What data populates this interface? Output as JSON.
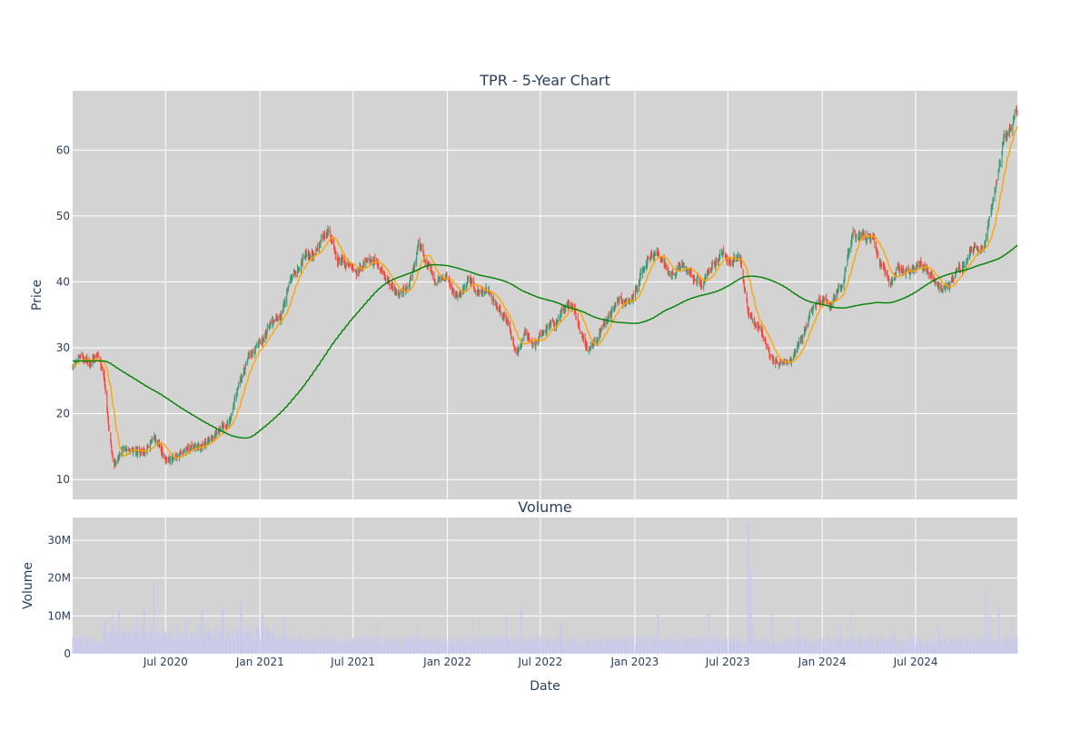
{
  "chart_data": {
    "type": "candlestick",
    "title": "TPR - 5-Year Chart",
    "price_panel": {
      "ylabel": "Price",
      "ylim": [
        7,
        69
      ],
      "yticks": [
        10,
        20,
        30,
        40,
        50,
        60
      ],
      "yticks_labels": [
        "10",
        "20",
        "30",
        "40",
        "50",
        "60"
      ],
      "colors": {
        "up": "#3d9970",
        "down": "#ff4136",
        "ma_short": "#ffa500",
        "ma_long": "#008000"
      },
      "anchors": [
        [
          "2020-01-01",
          27.0
        ],
        [
          "2020-01-20",
          28.5
        ],
        [
          "2020-02-05",
          27.5
        ],
        [
          "2020-02-20",
          29.0
        ],
        [
          "2020-03-03",
          25.5
        ],
        [
          "2020-03-12",
          18.0
        ],
        [
          "2020-03-22",
          12.0
        ],
        [
          "2020-04-05",
          14.5
        ],
        [
          "2020-04-25",
          14.5
        ],
        [
          "2020-05-20",
          14.0
        ],
        [
          "2020-06-10",
          16.5
        ],
        [
          "2020-07-01",
          13.0
        ],
        [
          "2020-07-25",
          13.5
        ],
        [
          "2020-08-15",
          15.0
        ],
        [
          "2020-09-10",
          15.0
        ],
        [
          "2020-10-05",
          17.0
        ],
        [
          "2020-11-01",
          18.5
        ],
        [
          "2020-11-20",
          24.0
        ],
        [
          "2020-12-10",
          28.5
        ],
        [
          "2021-01-05",
          31.0
        ],
        [
          "2021-01-20",
          34.0
        ],
        [
          "2021-02-10",
          34.5
        ],
        [
          "2021-03-01",
          40.0
        ],
        [
          "2021-03-20",
          43.0
        ],
        [
          "2021-04-10",
          43.5
        ],
        [
          "2021-05-01",
          46.0
        ],
        [
          "2021-05-15",
          48.0
        ],
        [
          "2021-06-01",
          44.0
        ],
        [
          "2021-06-20",
          43.0
        ],
        [
          "2021-07-10",
          42.0
        ],
        [
          "2021-08-01",
          43.5
        ],
        [
          "2021-08-20",
          42.5
        ],
        [
          "2021-09-10",
          39.0
        ],
        [
          "2021-10-01",
          38.5
        ],
        [
          "2021-10-20",
          39.5
        ],
        [
          "2021-11-05",
          45.5
        ],
        [
          "2021-11-20",
          43.5
        ],
        [
          "2021-12-10",
          40.5
        ],
        [
          "2022-01-01",
          40.5
        ],
        [
          "2022-01-20",
          37.5
        ],
        [
          "2022-02-10",
          40.0
        ],
        [
          "2022-03-01",
          38.5
        ],
        [
          "2022-03-20",
          39.0
        ],
        [
          "2022-04-10",
          35.5
        ],
        [
          "2022-05-01",
          33.0
        ],
        [
          "2022-05-15",
          28.5
        ],
        [
          "2022-06-01",
          32.0
        ],
        [
          "2022-06-20",
          30.5
        ],
        [
          "2022-07-10",
          32.5
        ],
        [
          "2022-08-01",
          34.0
        ],
        [
          "2022-08-20",
          36.5
        ],
        [
          "2022-09-10",
          34.5
        ],
        [
          "2022-10-01",
          30.0
        ],
        [
          "2022-10-20",
          31.5
        ],
        [
          "2022-11-10",
          35.0
        ],
        [
          "2022-12-01",
          37.5
        ],
        [
          "2022-12-20",
          36.5
        ],
        [
          "2023-01-10",
          41.0
        ],
        [
          "2023-02-01",
          44.5
        ],
        [
          "2023-02-20",
          44.0
        ],
        [
          "2023-03-10",
          41.0
        ],
        [
          "2023-04-01",
          42.5
        ],
        [
          "2023-04-20",
          41.0
        ],
        [
          "2023-05-10",
          40.0
        ],
        [
          "2023-06-01",
          43.0
        ],
        [
          "2023-06-20",
          43.5
        ],
        [
          "2023-07-10",
          43.0
        ],
        [
          "2023-07-25",
          43.5
        ],
        [
          "2023-08-10",
          35.0
        ],
        [
          "2023-09-01",
          33.0
        ],
        [
          "2023-09-20",
          29.0
        ],
        [
          "2023-10-10",
          27.5
        ],
        [
          "2023-11-01",
          28.0
        ],
        [
          "2023-11-20",
          31.0
        ],
        [
          "2023-12-10",
          35.5
        ],
        [
          "2024-01-01",
          37.5
        ],
        [
          "2024-01-20",
          37.0
        ],
        [
          "2024-02-10",
          40.0
        ],
        [
          "2024-03-01",
          47.0
        ],
        [
          "2024-03-20",
          47.0
        ],
        [
          "2024-04-10",
          46.5
        ],
        [
          "2024-04-25",
          42.0
        ],
        [
          "2024-05-15",
          40.0
        ],
        [
          "2024-06-01",
          42.5
        ],
        [
          "2024-06-20",
          41.5
        ],
        [
          "2024-07-10",
          43.0
        ],
        [
          "2024-08-01",
          41.0
        ],
        [
          "2024-08-20",
          38.5
        ],
        [
          "2024-09-05",
          39.5
        ],
        [
          "2024-09-20",
          41.5
        ],
        [
          "2024-10-10",
          44.0
        ],
        [
          "2024-10-25",
          46.0
        ],
        [
          "2024-11-10",
          44.5
        ],
        [
          "2024-11-20",
          50.0
        ],
        [
          "2024-12-05",
          55.0
        ],
        [
          "2024-12-20",
          61.5
        ],
        [
          "2025-01-05",
          63.0
        ],
        [
          "2025-01-15",
          65.0
        ]
      ]
    },
    "volume_panel": {
      "title": "Volume",
      "ylabel": "Volume",
      "ylim": [
        0,
        36000000
      ],
      "yticks": [
        0,
        10000000,
        20000000,
        30000000
      ],
      "yticks_labels": [
        "0",
        "10M",
        "20M",
        "30M"
      ],
      "bar_color": "#c8c8f0",
      "spikes": [
        [
          "2020-03-05",
          9000000
        ],
        [
          "2020-03-20",
          10000000
        ],
        [
          "2020-04-01",
          12000000
        ],
        [
          "2020-05-05",
          9500000
        ],
        [
          "2020-05-20",
          12000000
        ],
        [
          "2020-06-08",
          19000000
        ],
        [
          "2020-08-10",
          9500000
        ],
        [
          "2020-09-10",
          11500000
        ],
        [
          "2020-10-20",
          13000000
        ],
        [
          "2020-11-25",
          14000000
        ],
        [
          "2021-01-05",
          10500000
        ],
        [
          "2021-02-15",
          10000000
        ],
        [
          "2021-05-15",
          7000000
        ],
        [
          "2021-08-15",
          8500000
        ],
        [
          "2021-11-05",
          7000000
        ],
        [
          "2022-02-20",
          9500000
        ],
        [
          "2022-04-25",
          10000000
        ],
        [
          "2022-05-25",
          12500000
        ],
        [
          "2022-08-10",
          8500000
        ],
        [
          "2023-02-15",
          10500000
        ],
        [
          "2023-05-25",
          10500000
        ],
        [
          "2023-08-10",
          35000000
        ],
        [
          "2023-08-15",
          22000000
        ],
        [
          "2023-09-25",
          11000000
        ],
        [
          "2023-11-15",
          9000000
        ],
        [
          "2024-02-05",
          8000000
        ],
        [
          "2024-02-25",
          11000000
        ],
        [
          "2024-05-20",
          6500000
        ],
        [
          "2024-08-15",
          7000000
        ],
        [
          "2024-11-15",
          17500000
        ],
        [
          "2024-11-22",
          11000000
        ],
        [
          "2024-12-10",
          13000000
        ],
        [
          "2025-01-05",
          10000000
        ]
      ]
    },
    "x_axis": {
      "label": "Date",
      "range": [
        "2020-01-02",
        "2025-01-15"
      ],
      "ticks": [
        "2020-07-01",
        "2021-01-01",
        "2021-07-01",
        "2022-01-01",
        "2022-07-01",
        "2023-01-01",
        "2023-07-01",
        "2024-01-01",
        "2024-07-01"
      ],
      "tick_labels": [
        "Jul 2020",
        "Jan 2021",
        "Jul 2021",
        "Jan 2022",
        "Jul 2022",
        "Jan 2023",
        "Jul 2023",
        "Jan 2024",
        "Jul 2024"
      ]
    },
    "moving_averages": [
      "20-day",
      "200-day"
    ],
    "grid": true,
    "legend": "none",
    "plot_bg": "#d3d3d3"
  }
}
